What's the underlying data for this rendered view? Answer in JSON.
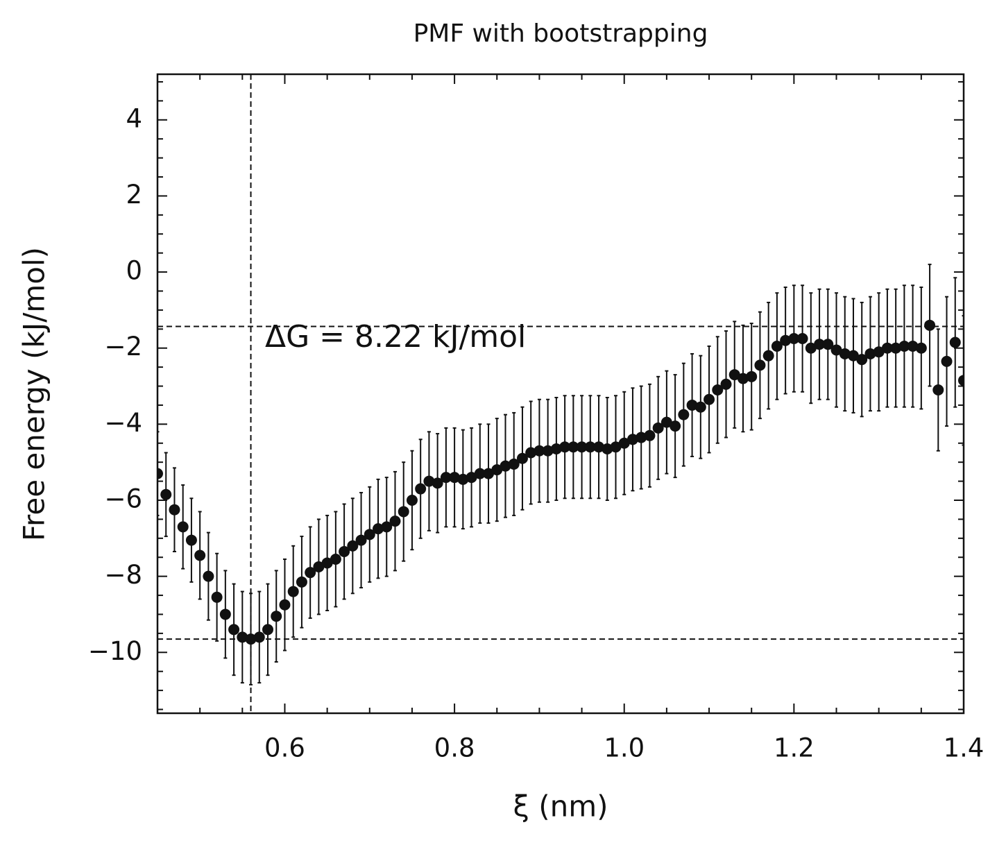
{
  "chart_data": {
    "type": "errorbar",
    "title": "PMF with bootstrapping",
    "xlabel": "ξ (nm)",
    "ylabel": "Free energy (kJ/mol)",
    "annotation": "ΔG = 8.22 kJ/mol",
    "color": "#111111",
    "x": [
      0.45,
      0.46,
      0.47,
      0.48,
      0.49,
      0.5,
      0.51,
      0.52,
      0.53,
      0.54,
      0.55,
      0.56,
      0.57,
      0.58,
      0.59,
      0.6,
      0.61,
      0.62,
      0.63,
      0.64,
      0.65,
      0.66,
      0.67,
      0.68,
      0.69,
      0.7,
      0.71,
      0.72,
      0.73,
      0.74,
      0.75,
      0.76,
      0.77,
      0.78,
      0.79,
      0.8,
      0.81,
      0.82,
      0.83,
      0.84,
      0.85,
      0.86,
      0.87,
      0.88,
      0.89,
      0.9,
      0.91,
      0.92,
      0.93,
      0.94,
      0.95,
      0.96,
      0.97,
      0.98,
      0.99,
      1.0,
      1.01,
      1.02,
      1.03,
      1.04,
      1.05,
      1.06,
      1.07,
      1.08,
      1.09,
      1.1,
      1.11,
      1.12,
      1.13,
      1.14,
      1.15,
      1.16,
      1.17,
      1.18,
      1.19,
      1.2,
      1.21,
      1.22,
      1.23,
      1.24,
      1.25,
      1.26,
      1.27,
      1.28,
      1.29,
      1.3,
      1.31,
      1.32,
      1.33,
      1.34,
      1.35,
      1.36,
      1.37,
      1.38,
      1.39,
      1.4
    ],
    "values": [
      -5.3,
      -5.85,
      -6.25,
      -6.7,
      -7.05,
      -7.45,
      -8.0,
      -8.55,
      -9.0,
      -9.4,
      -9.6,
      -9.65,
      -9.6,
      -9.4,
      -9.05,
      -8.75,
      -8.4,
      -8.15,
      -7.9,
      -7.75,
      -7.65,
      -7.55,
      -7.35,
      -7.2,
      -7.05,
      -6.9,
      -6.75,
      -6.7,
      -6.55,
      -6.3,
      -6.0,
      -5.7,
      -5.5,
      -5.55,
      -5.4,
      -5.4,
      -5.45,
      -5.4,
      -5.3,
      -5.3,
      -5.2,
      -5.1,
      -5.05,
      -4.9,
      -4.75,
      -4.7,
      -4.7,
      -4.65,
      -4.6,
      -4.6,
      -4.6,
      -4.6,
      -4.6,
      -4.65,
      -4.6,
      -4.5,
      -4.4,
      -4.35,
      -4.3,
      -4.1,
      -3.95,
      -4.05,
      -3.75,
      -3.5,
      -3.55,
      -3.35,
      -3.1,
      -2.95,
      -2.7,
      -2.8,
      -2.75,
      -2.45,
      -2.2,
      -1.95,
      -1.8,
      -1.75,
      -1.75,
      -2.0,
      -1.9,
      -1.9,
      -2.05,
      -2.15,
      -2.2,
      -2.3,
      -2.15,
      -2.1,
      -2.0,
      -2.0,
      -1.95,
      -1.95,
      -2.0,
      -1.4,
      -3.1,
      -2.35,
      -1.85,
      -2.85
    ],
    "errors": [
      1.1,
      1.1,
      1.1,
      1.1,
      1.1,
      1.15,
      1.15,
      1.15,
      1.15,
      1.2,
      1.2,
      1.2,
      1.2,
      1.2,
      1.2,
      1.2,
      1.2,
      1.2,
      1.2,
      1.25,
      1.25,
      1.25,
      1.25,
      1.25,
      1.25,
      1.25,
      1.3,
      1.3,
      1.3,
      1.3,
      1.3,
      1.3,
      1.3,
      1.3,
      1.3,
      1.3,
      1.3,
      1.3,
      1.3,
      1.3,
      1.35,
      1.35,
      1.35,
      1.35,
      1.35,
      1.35,
      1.35,
      1.35,
      1.35,
      1.35,
      1.35,
      1.35,
      1.35,
      1.35,
      1.35,
      1.35,
      1.35,
      1.35,
      1.35,
      1.35,
      1.35,
      1.35,
      1.35,
      1.35,
      1.35,
      1.4,
      1.4,
      1.4,
      1.4,
      1.4,
      1.4,
      1.4,
      1.4,
      1.4,
      1.4,
      1.4,
      1.4,
      1.45,
      1.45,
      1.45,
      1.5,
      1.5,
      1.5,
      1.5,
      1.5,
      1.55,
      1.55,
      1.55,
      1.6,
      1.6,
      1.6,
      1.6,
      1.6,
      1.7,
      1.7,
      1.7
    ],
    "hlines": [
      -1.43,
      -9.65
    ],
    "vlines": [
      0.56
    ],
    "xlim": [
      0.45,
      1.4
    ],
    "ylim": [
      -11.6,
      5.2
    ],
    "xticks": [
      0.6,
      0.8,
      {
        "value": 1.0,
        "label": "1.0"
      },
      1.2,
      1.4
    ],
    "yticks": [
      {
        "value": -10,
        "label": "−10"
      },
      {
        "value": -8,
        "label": "−8"
      },
      {
        "value": -6,
        "label": "−6"
      },
      {
        "value": -4,
        "label": "−4"
      },
      {
        "value": -2,
        "label": "−2"
      },
      0,
      2,
      4
    ],
    "xminorticks": [
      0.45,
      0.5,
      0.55,
      0.65,
      0.7,
      0.75,
      0.85,
      0.9,
      0.95,
      1.05,
      1.1,
      1.15,
      1.25,
      1.3,
      1.35
    ],
    "yminorticks": [
      -11.5,
      -11,
      -10.5,
      -9.5,
      -9,
      -8.5,
      -7.5,
      -7,
      -6.5,
      -5.5,
      -5,
      -4.5,
      -3.5,
      -3,
      -2.5,
      -1.5,
      -1,
      -0.5,
      0.5,
      1,
      1.5,
      2.5,
      3,
      3.5,
      4.5,
      5
    ]
  }
}
